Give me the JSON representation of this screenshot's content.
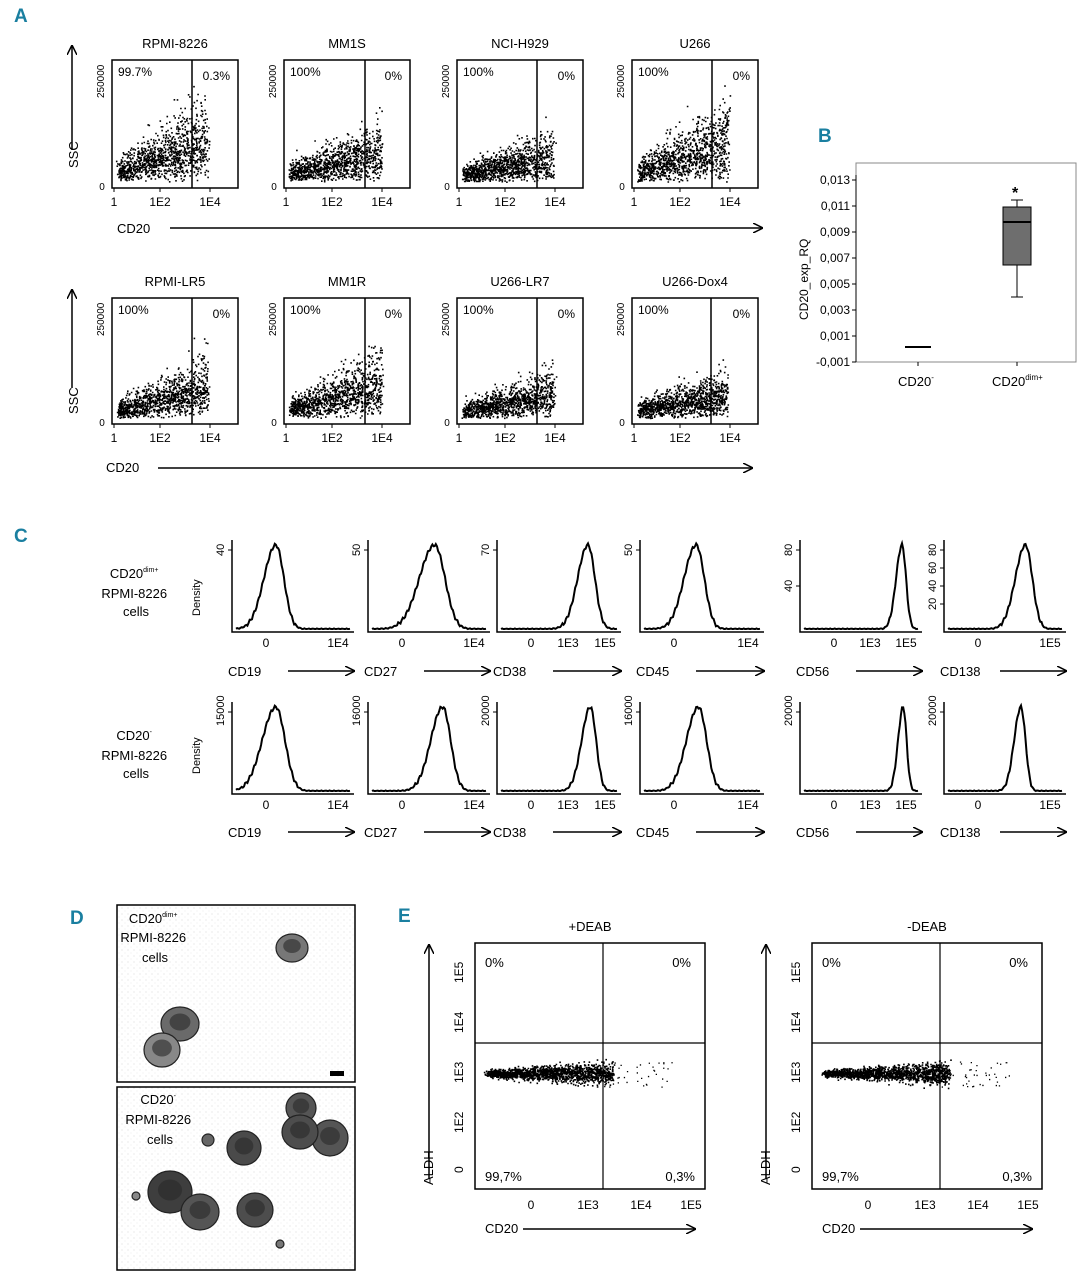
{
  "colors": {
    "panel_label": "#1a7fa0",
    "ink": "#000000",
    "box_fill": "#6e6e6e"
  },
  "panel_labels": {
    "a": "A",
    "b": "B",
    "c": "C",
    "d": "D",
    "e": "E"
  },
  "panel_a": {
    "ssc_label": "SSC",
    "cd20_label": "CD20",
    "y_ticks": [
      "0",
      "250000"
    ],
    "x_ticks": [
      "1",
      "1E2",
      "1E4"
    ],
    "row1": [
      {
        "title": "RPMI-8226",
        "left_pct": "99.7%",
        "right_pct": "0.3%"
      },
      {
        "title": "MM1S",
        "left_pct": "100%",
        "right_pct": "0%"
      },
      {
        "title": "NCI-H929",
        "left_pct": "100%",
        "right_pct": "0%"
      },
      {
        "title": "U266",
        "left_pct": "100%",
        "right_pct": "0%"
      }
    ],
    "row2": [
      {
        "title": "RPMI-LR5",
        "left_pct": "100%",
        "right_pct": "0%"
      },
      {
        "title": "MM1R",
        "left_pct": "100%",
        "right_pct": "0%"
      },
      {
        "title": "U266-LR7",
        "left_pct": "100%",
        "right_pct": "0%"
      },
      {
        "title": "U266-Dox4",
        "left_pct": "100%",
        "right_pct": "0%"
      }
    ]
  },
  "panel_b": {
    "ylabel": "CD20_exp_RQ",
    "y_ticks": [
      "0,013",
      "0,011",
      "0,009",
      "0,007",
      "0,005",
      "0,003",
      "0,001",
      "-0,001"
    ],
    "x_labels": [
      {
        "main": "CD20",
        "sup": "-"
      },
      {
        "main": "CD20",
        "sup": "dim+"
      }
    ],
    "significance": "*"
  },
  "panel_c": {
    "density_label": "Density",
    "row1_label": {
      "line1_main": "CD20",
      "line1_sup": "dim+",
      "line2": "RPMI-8226",
      "line3": "cells"
    },
    "row2_label": {
      "line1_main": "CD20",
      "line1_sup": "-",
      "line2": "RPMI-8226",
      "line3": "cells"
    },
    "markers": [
      "CD19",
      "CD27",
      "CD38",
      "CD45",
      "CD56",
      "CD138"
    ],
    "row1_yticks": [
      [
        "40"
      ],
      [
        "50"
      ],
      [
        "70"
      ],
      [
        "50"
      ],
      [
        "80",
        "40"
      ],
      [
        "80",
        "60",
        "40",
        "20"
      ]
    ],
    "row2_yticks": [
      [
        "15000"
      ],
      [
        "16000"
      ],
      [
        "20000"
      ],
      [
        "16000"
      ],
      [
        "20000"
      ],
      [
        "20000"
      ]
    ],
    "x_ticks": [
      [
        "0",
        "1E4"
      ],
      [
        "0",
        "1E4"
      ],
      [
        "0",
        "1E3",
        "1E5"
      ],
      [
        "0",
        "1E4"
      ],
      [
        "0",
        "1E3",
        "1E5"
      ],
      [
        "0",
        "1E5"
      ]
    ]
  },
  "panel_d": {
    "top_label": {
      "line1_main": "CD20",
      "line1_sup": "dim+",
      "line2": "RPMI-8226",
      "line3": "cells"
    },
    "bottom_label": {
      "line1_main": "CD20",
      "line1_sup": "-",
      "line2": "RPMI-8226",
      "line3": "cells"
    }
  },
  "panel_e": {
    "ylabel": "ALDH",
    "xlabel": "CD20",
    "y_ticks": [
      "1E5",
      "1E4",
      "1E3",
      "1E2",
      "0"
    ],
    "x_ticks": [
      "0",
      "1E3",
      "1E4",
      "1E5"
    ],
    "plots": [
      {
        "title": "+DEAB",
        "ul": "0%",
        "ur": "0%",
        "ll": "99,7%",
        "lr": "0,3%"
      },
      {
        "title": "-DEAB",
        "ul": "0%",
        "ur": "0%",
        "ll": "99,7%",
        "lr": "0,3%"
      }
    ]
  }
}
